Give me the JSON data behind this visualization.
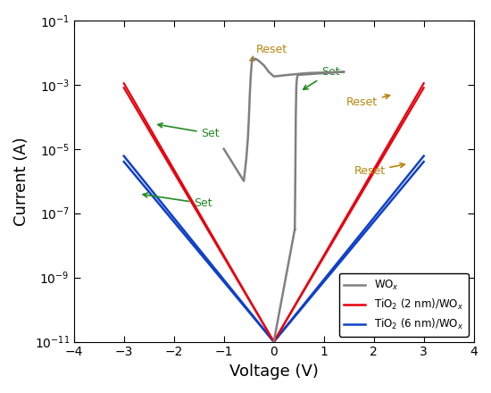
{
  "xlabel": "Voltage (V)",
  "ylabel": "Current (A)",
  "xlim": [
    -4,
    4
  ],
  "ylim_log": [
    -11,
    -1
  ],
  "legend_labels": [
    "WO$_x$",
    "TiO$_2$ (2 nm)/WO$_x$",
    "TiO$_2$ (6 nm)/WO$_x$"
  ],
  "legend_colors": [
    "#808080",
    "#E8000E",
    "#1040C8"
  ],
  "gray_color": "#808080",
  "red_color": "#E8000E",
  "blue_color": "#1040C8",
  "background_color": "#FFFFFF"
}
